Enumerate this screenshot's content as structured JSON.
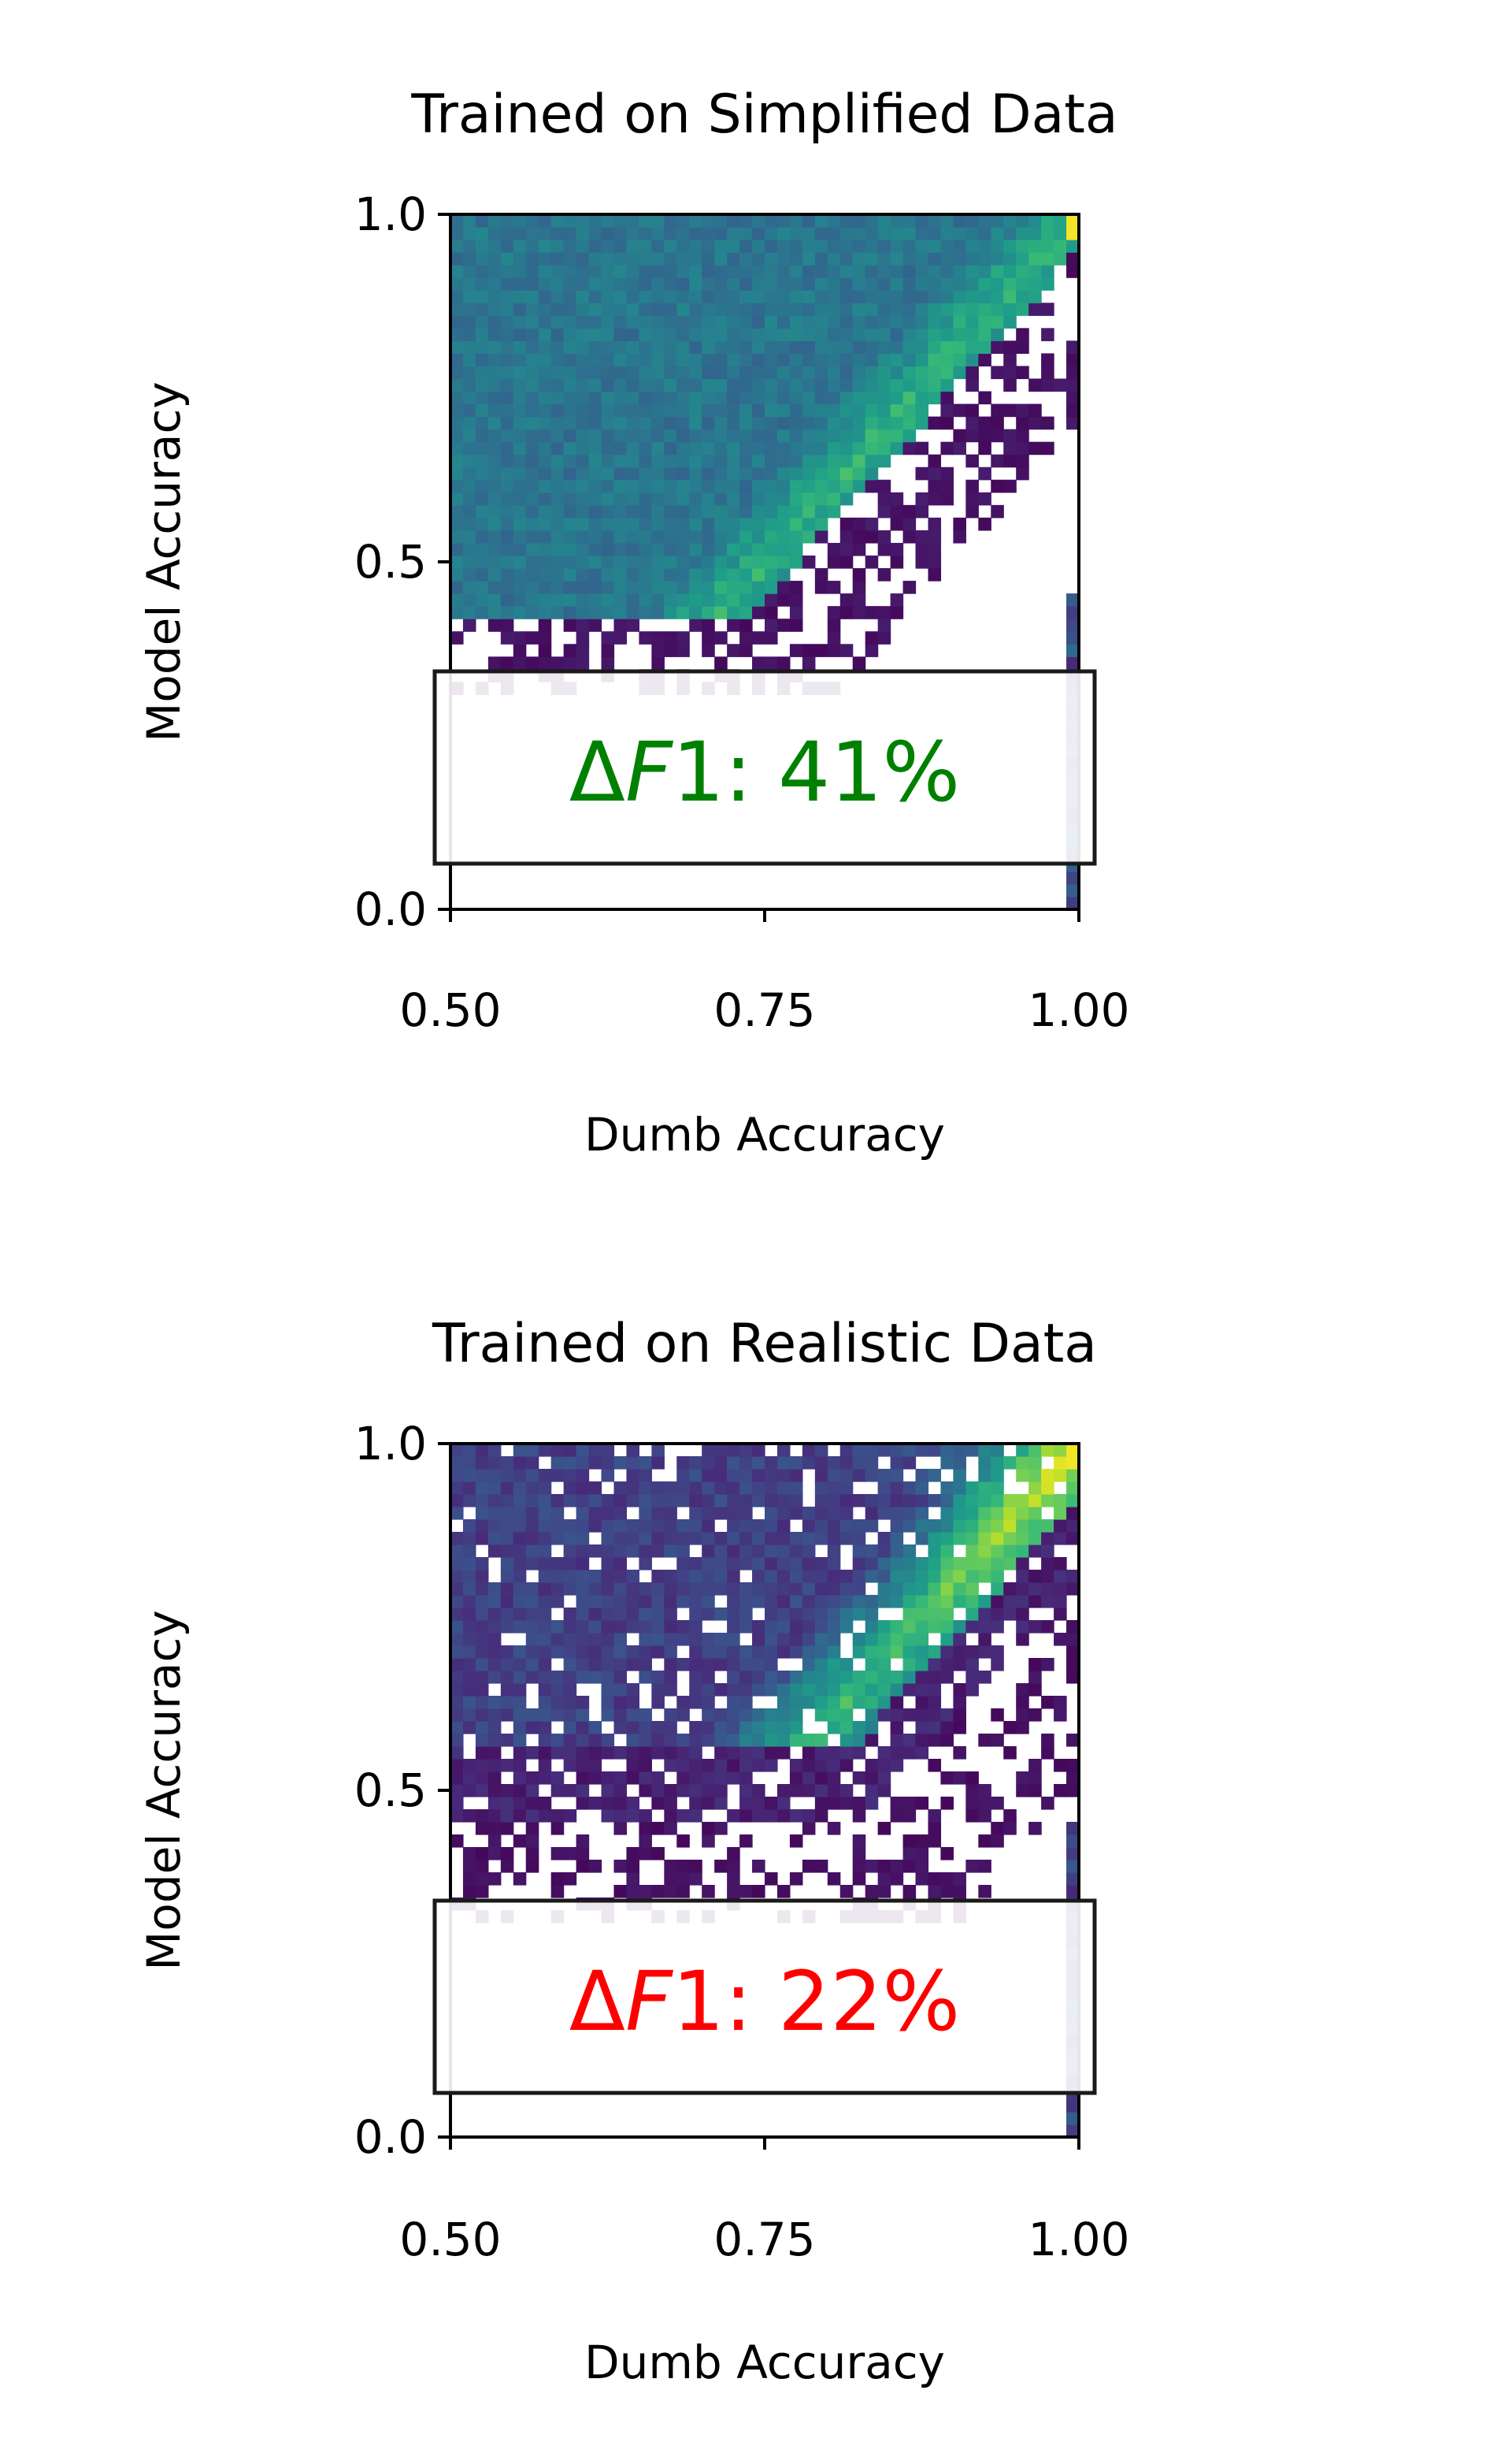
{
  "chart_data": [
    {
      "type": "heatmap",
      "title": "Trained on Simplified Data",
      "xlabel": "Dumb Accuracy",
      "ylabel": "Model Accuracy",
      "xlim": [
        0.5,
        1.0
      ],
      "ylim": [
        0.0,
        1.0
      ],
      "xticks": [
        {
          "value": 0.5,
          "label": "0.50"
        },
        {
          "value": 0.75,
          "label": "0.75"
        },
        {
          "value": 1.0,
          "label": "1.00"
        }
      ],
      "yticks": [
        {
          "value": 0.0,
          "label": "0.0"
        },
        {
          "value": 0.5,
          "label": "0.5"
        },
        {
          "value": 1.0,
          "label": "1.0"
        }
      ],
      "colormap": "viridis",
      "annotation": {
        "prefix": "Δ",
        "italic": "F",
        "suffix": "1: 41%",
        "color": "#008000"
      },
      "grid": false
    },
    {
      "type": "heatmap",
      "title": "Trained on Realistic Data",
      "xlabel": "Dumb Accuracy",
      "ylabel": "Model Accuracy",
      "xlim": [
        0.5,
        1.0
      ],
      "ylim": [
        0.0,
        1.0
      ],
      "xticks": [
        {
          "value": 0.5,
          "label": "0.50"
        },
        {
          "value": 0.75,
          "label": "0.75"
        },
        {
          "value": 1.0,
          "label": "1.00"
        }
      ],
      "yticks": [
        {
          "value": 0.0,
          "label": "0.0"
        },
        {
          "value": 0.5,
          "label": "0.5"
        },
        {
          "value": 1.0,
          "label": "1.0"
        }
      ],
      "colormap": "viridis",
      "annotation": {
        "prefix": "Δ",
        "italic": "F",
        "suffix": "1: 22%",
        "color": "#ff0000"
      },
      "grid": false
    }
  ]
}
